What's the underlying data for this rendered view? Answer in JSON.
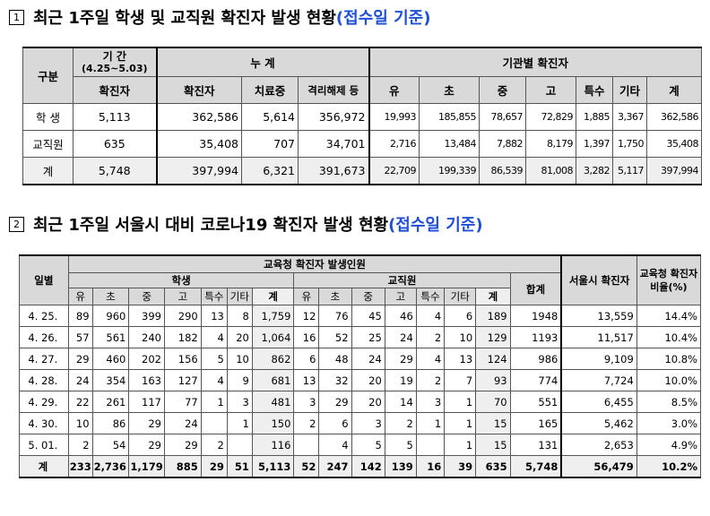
{
  "section1": {
    "marker": "1",
    "title": "최근 1주일 학생 및 교직원 확진자 발생 현황",
    "note": "(접수일 기준)",
    "table": {
      "h_category": "구분",
      "h_period": "기 간",
      "h_period_range": "(4.25~5.03)",
      "h_cumulative": "누 계",
      "h_by_institution": "기관별 확진자",
      "h_confirmed": "확진자",
      "h_confirmed2": "확진자",
      "h_treating": "치료중",
      "h_released": "격리해제 등",
      "h_kinder": "유",
      "h_elem": "초",
      "h_middle": "중",
      "h_high": "고",
      "h_special": "특수",
      "h_other": "기타",
      "h_total": "계",
      "rows": [
        {
          "label": "학   생",
          "period": "5,113",
          "cum": "362,586",
          "treat": "5,614",
          "rel": "356,972",
          "yu": "19,993",
          "cho": "185,855",
          "jung": "78,657",
          "go": "72,829",
          "teuk": "1,885",
          "gita": "3,367",
          "gye": "362,586"
        },
        {
          "label": "교직원",
          "period": "635",
          "cum": "35,408",
          "treat": "707",
          "rel": "34,701",
          "yu": "2,716",
          "cho": "13,484",
          "jung": "7,882",
          "go": "8,179",
          "teuk": "1,397",
          "gita": "1,750",
          "gye": "35,408"
        },
        {
          "label": "계",
          "period": "5,748",
          "cum": "397,994",
          "treat": "6,321",
          "rel": "391,673",
          "yu": "22,709",
          "cho": "199,339",
          "jung": "86,539",
          "go": "81,008",
          "teuk": "3,282",
          "gita": "5,117",
          "gye": "397,994"
        }
      ]
    }
  },
  "section2": {
    "marker": "2",
    "title": "최근 1주일 서울시 대비 코로나19 확진자 발생 현황",
    "note": "(접수일 기준)",
    "table": {
      "h_day": "일별",
      "h_edu": "교육청 확진자 발생인원",
      "h_students": "학생",
      "h_staff": "교직원",
      "h_sum": "합계",
      "h_seoul": "서울시 확진자",
      "h_ratio": "교육청 확진자 비율(%)",
      "cols": [
        "유",
        "초",
        "중",
        "고",
        "특수",
        "기타",
        "계"
      ],
      "rows": [
        {
          "day": "4. 25.",
          "s": [
            "89",
            "960",
            "399",
            "290",
            "13",
            "8",
            "1,759"
          ],
          "t": [
            "12",
            "76",
            "45",
            "46",
            "4",
            "6",
            "189"
          ],
          "sum": "1948",
          "seoul": "13,559",
          "ratio": "14.4%"
        },
        {
          "day": "4. 26.",
          "s": [
            "57",
            "561",
            "240",
            "182",
            "4",
            "20",
            "1,064"
          ],
          "t": [
            "16",
            "52",
            "25",
            "24",
            "2",
            "10",
            "129"
          ],
          "sum": "1193",
          "seoul": "11,517",
          "ratio": "10.4%"
        },
        {
          "day": "4. 27.",
          "s": [
            "29",
            "460",
            "202",
            "156",
            "5",
            "10",
            "862"
          ],
          "t": [
            "6",
            "48",
            "24",
            "29",
            "4",
            "13",
            "124"
          ],
          "sum": "986",
          "seoul": "9,109",
          "ratio": "10.8%"
        },
        {
          "day": "4. 28.",
          "s": [
            "24",
            "354",
            "163",
            "127",
            "4",
            "9",
            "681"
          ],
          "t": [
            "13",
            "32",
            "20",
            "19",
            "2",
            "7",
            "93"
          ],
          "sum": "774",
          "seoul": "7,724",
          "ratio": "10.0%"
        },
        {
          "day": "4. 29.",
          "s": [
            "22",
            "261",
            "117",
            "77",
            "1",
            "3",
            "481"
          ],
          "t": [
            "3",
            "29",
            "20",
            "14",
            "3",
            "1",
            "70"
          ],
          "sum": "551",
          "seoul": "6,455",
          "ratio": "8.5%"
        },
        {
          "day": "4. 30.",
          "s": [
            "10",
            "86",
            "29",
            "24",
            "",
            "1",
            "150"
          ],
          "t": [
            "2",
            "6",
            "3",
            "2",
            "1",
            "1",
            "15"
          ],
          "sum": "165",
          "seoul": "5,462",
          "ratio": "3.0%"
        },
        {
          "day": "5. 01.",
          "s": [
            "2",
            "54",
            "29",
            "29",
            "2",
            "",
            "116"
          ],
          "t": [
            "",
            "4",
            "5",
            "5",
            "",
            "1",
            "15"
          ],
          "sum": "131",
          "seoul": "2,653",
          "ratio": "4.9%"
        }
      ],
      "total": {
        "day": "계",
        "s": [
          "233",
          "2,736",
          "1,179",
          "885",
          "29",
          "51",
          "5,113"
        ],
        "t": [
          "52",
          "247",
          "142",
          "139",
          "16",
          "39",
          "635"
        ],
        "sum": "5,748",
        "seoul": "56,479",
        "ratio": "10.2%"
      }
    }
  }
}
